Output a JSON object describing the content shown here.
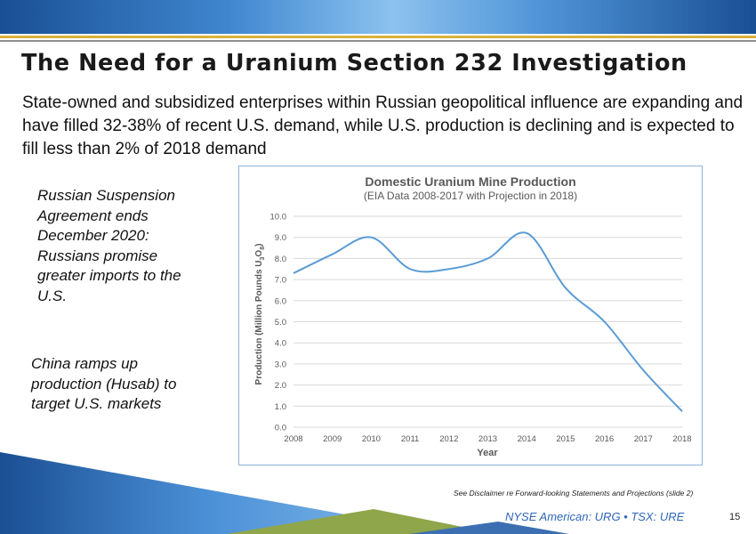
{
  "slide": {
    "title": "The Need for a Uranium Section 232 Investigation",
    "subtitle": "State-owned and subsidized enterprises within Russian geopolitical influence are expanding and have filled 32-38% of recent U.S. demand, while U.S. production is declining and is expected to fill less than 2% of 2018 demand",
    "notes": [
      "Russian Suspension Agreement ends December 2020: Russians promise greater imports to the U.S.",
      "China ramps up production (Husab) to target U.S. markets"
    ],
    "disclaimer": "See Disclaimer re Forward-looking Statements and Projections (slide 2)",
    "ticker": "NYSE American: URG • TSX: URE",
    "page_number": "15"
  },
  "colors": {
    "title_text": "#1a1a1a",
    "series_line": "#5b9bd5",
    "gridline": "#d9d9d9",
    "ticker_text": "#2f66b8",
    "gold_rule": "#d9b23a"
  },
  "chart_data": {
    "type": "line",
    "title": "Domestic Uranium Mine Production",
    "subtitle": "(EIA Data 2008-2017 with Projection in 2018)",
    "xlabel": "Year",
    "ylabel_prefix": "Production (Million Pounds U",
    "ylabel_sub1": "3",
    "ylabel_mid": "O",
    "ylabel_sub2": "8",
    "ylabel_suffix": ")",
    "x": [
      "2008",
      "2009",
      "2010",
      "2011",
      "2012",
      "2013",
      "2014",
      "2015",
      "2016",
      "2017",
      "2018"
    ],
    "ylim": [
      0,
      10
    ],
    "yticks": [
      "0.0",
      "1.0",
      "2.0",
      "3.0",
      "4.0",
      "5.0",
      "6.0",
      "7.0",
      "8.0",
      "9.0",
      "10.0"
    ],
    "grid": true,
    "series": [
      {
        "name": "Domestic Uranium Mine Production",
        "values": [
          7.3,
          8.2,
          9.0,
          7.5,
          7.5,
          8.0,
          9.2,
          6.6,
          5.0,
          2.7,
          0.75
        ]
      }
    ]
  }
}
